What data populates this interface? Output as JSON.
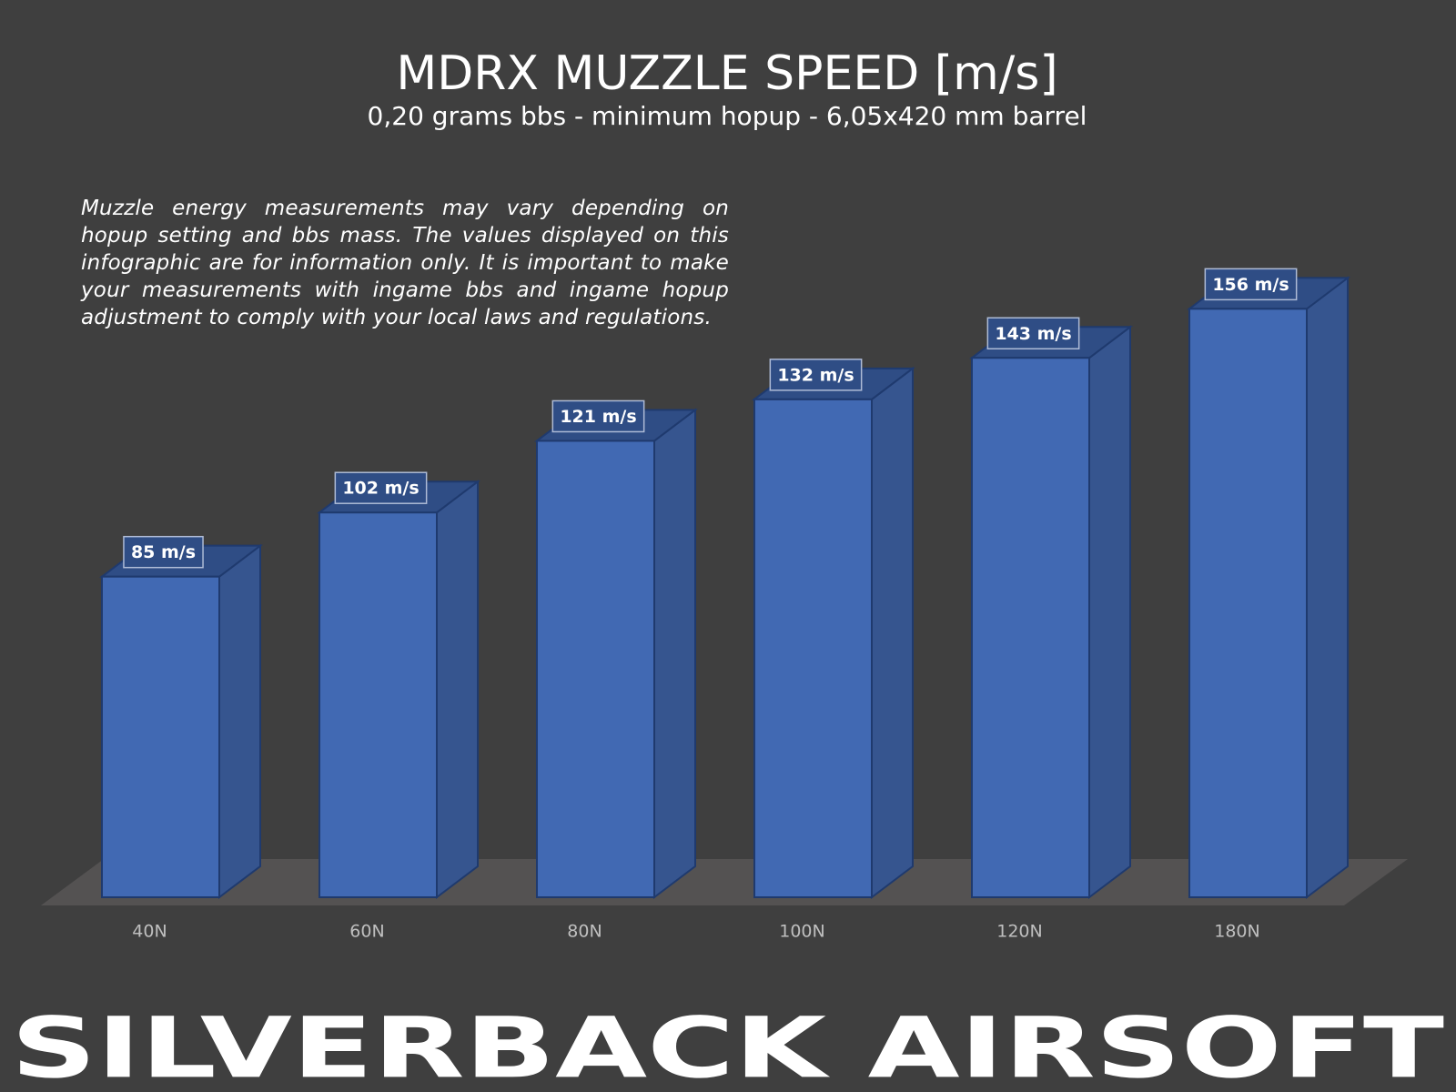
{
  "chart_data": {
    "type": "bar3d",
    "title": "MDRX MUZZLE SPEED [m/s]",
    "subtitle": "0,20 grams bbs - minimum hopup - 6,05x420 mm barrel",
    "note": "Muzzle energy measurements may vary depending on hopup setting and bbs mass. The values displayed on this infographic are for information only. It is important to make your measurements with ingame bbs and ingame hopup adjustment to comply with your local laws and regulations.",
    "categories": [
      "40N",
      "60N",
      "80N",
      "100N",
      "120N",
      "180N"
    ],
    "values": [
      85,
      102,
      121,
      132,
      143,
      156
    ],
    "value_labels": [
      "85 m/s",
      "102 m/s",
      "121 m/s",
      "132 m/s",
      "143 m/s",
      "156 m/s"
    ],
    "color": "#4169b3",
    "brand": "SILVERBACK AIRSOFT"
  }
}
